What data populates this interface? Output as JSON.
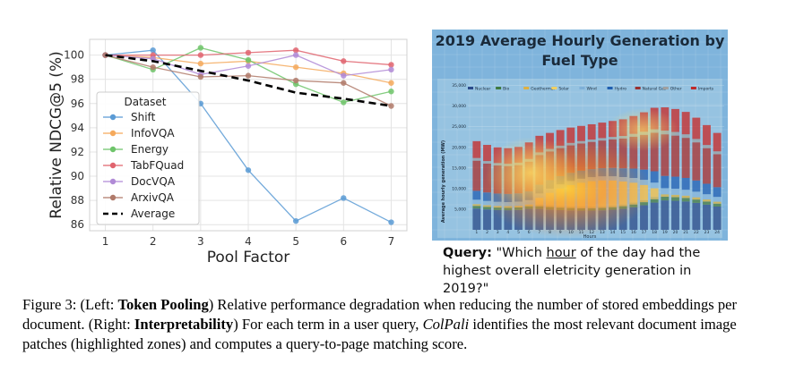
{
  "chart_data": {
    "type": "line",
    "x": [
      1,
      2,
      3,
      4,
      5,
      6,
      7
    ],
    "xlabel": "Pool Factor",
    "ylabel": "Relative NDCG@5 (%)",
    "ylim": [
      85.5,
      101.3
    ],
    "yticks": [
      86,
      88,
      90,
      92,
      94,
      96,
      98,
      100
    ],
    "legend_title": "Dataset",
    "legend_position": "lower-left",
    "grid": true,
    "series": [
      {
        "name": "Shift",
        "color": "#5b9bd5",
        "values": [
          100,
          100.4,
          96.0,
          90.5,
          86.3,
          88.2,
          86.2
        ]
      },
      {
        "name": "InfoVQA",
        "color": "#f5a95c",
        "values": [
          100,
          99.8,
          99.3,
          99.5,
          99.0,
          98.5,
          97.7
        ]
      },
      {
        "name": "Energy",
        "color": "#6ec46a",
        "values": [
          100,
          98.8,
          100.6,
          99.6,
          97.6,
          96.1,
          97.0
        ]
      },
      {
        "name": "TabFQuad",
        "color": "#e0646e",
        "values": [
          100,
          100.0,
          100.0,
          100.2,
          100.4,
          99.5,
          99.2
        ]
      },
      {
        "name": "DocVQA",
        "color": "#b08ad6",
        "values": [
          100,
          99.7,
          98.4,
          99.1,
          100.0,
          98.3,
          98.8
        ]
      },
      {
        "name": "ArxivQA",
        "color": "#b07a6a",
        "values": [
          100,
          99.0,
          98.2,
          98.3,
          97.9,
          97.7,
          95.8
        ]
      },
      {
        "name": "Average",
        "color": "#000000",
        "dashed": true,
        "values": [
          100,
          99.5,
          98.7,
          97.9,
          96.9,
          96.4,
          95.8
        ]
      }
    ]
  },
  "right_figure": {
    "title": "2019 Average Hourly Generation by Fuel Type",
    "ylabel": "Average hourly generation (MW)",
    "xlabel": "Hours",
    "yticks": [
      "35,000",
      "30,000",
      "25,000",
      "20,000",
      "15,000",
      "10,000",
      "5,000"
    ],
    "hours": [
      "1",
      "2",
      "3",
      "4",
      "5",
      "6",
      "7",
      "8",
      "9",
      "10",
      "11",
      "12",
      "13",
      "14",
      "15",
      "16",
      "17",
      "18",
      "19",
      "20",
      "21",
      "22",
      "23",
      "24"
    ],
    "legend": [
      "Nuclear",
      "Bio",
      "Geothermal",
      "Solar",
      "Wind",
      "Hydro",
      "Natural Gas",
      "Other",
      "Imports"
    ],
    "legend_colors": [
      "#2a4a8a",
      "#3f7a3f",
      "#e0b040",
      "#f2d060",
      "#7fb0d8",
      "#1f5fb0",
      "#9a3030",
      "#a0a0a0",
      "#c02828"
    ],
    "stack_totals": [
      21500,
      20600,
      20000,
      19800,
      20100,
      21200,
      22800,
      23500,
      24200,
      24800,
      25200,
      25600,
      26000,
      26400,
      26800,
      27600,
      28500,
      29600,
      29700,
      29300,
      28600,
      27200,
      25400,
      23500
    ]
  },
  "query": {
    "label": "Query:",
    "text_before": "\"Which ",
    "highlight": "hour",
    "text_after": " of the day had the highest overall eletricity generation in 2019?\""
  },
  "caption": {
    "prefix": "Figure 3: (Left: ",
    "bold1": "Token Pooling",
    "mid1": ") Relative performance degradation when reducing the number of stored embeddings per document. (Right: ",
    "bold2": "Interpretability",
    "mid2": ") For each term in a user query, ",
    "italic": "ColPali",
    "suffix": " identifies the most relevant document image patches (highlighted zones) and computes a query-to-page matching score."
  }
}
